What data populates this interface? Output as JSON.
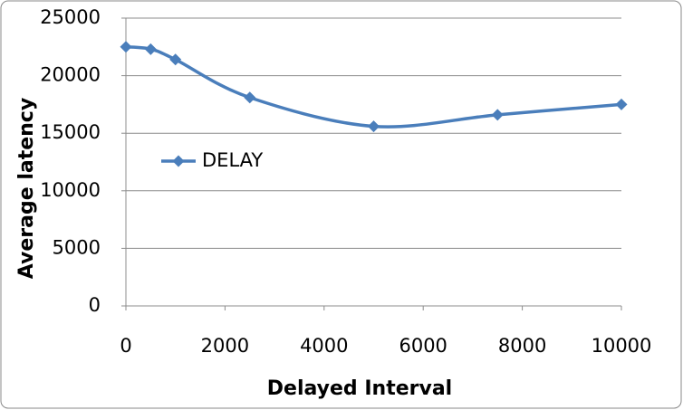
{
  "chart_data": {
    "type": "line",
    "x_label": "Delayed Interval",
    "y_label": "Average latency",
    "x": [
      0,
      500,
      1000,
      2500,
      5000,
      7500,
      10000
    ],
    "series": [
      {
        "name": "DELAY",
        "color": "#4a7ebb",
        "values": [
          22500,
          22300,
          21400,
          18100,
          15600,
          16600,
          17500
        ]
      }
    ],
    "xlim": [
      0,
      10000
    ],
    "xticks": [
      0,
      2000,
      4000,
      6000,
      8000,
      10000
    ],
    "ylim": [
      0,
      25000
    ],
    "yticks": [
      0,
      5000,
      10000,
      15000,
      20000,
      25000
    ],
    "grid": true,
    "smooth": true,
    "marker": "diamond",
    "legend": "left"
  }
}
